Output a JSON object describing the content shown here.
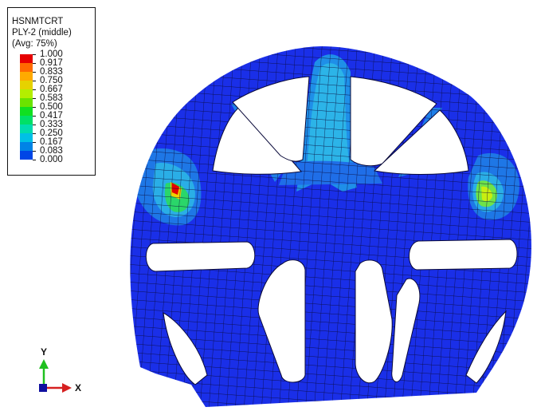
{
  "legend": {
    "variable": "HSNMTCRT",
    "ply": "PLY-2 (middle)",
    "averaging": "(Avg: 75%)",
    "levels": [
      "1.000",
      "0.917",
      "0.833",
      "0.750",
      "0.667",
      "0.583",
      "0.500",
      "0.417",
      "0.333",
      "0.250",
      "0.167",
      "0.083",
      "0.000"
    ],
    "colors": [
      "#e60000",
      "#ff6a00",
      "#ffaa00",
      "#e6d200",
      "#b4ee00",
      "#6ae300",
      "#10e020",
      "#00e066",
      "#00dcae",
      "#00c0e6",
      "#0084e6",
      "#0046e6",
      "#0000e6"
    ]
  },
  "triad": {
    "y_label": "Y",
    "x_label": "X",
    "y_color": "#1fc01f",
    "x_color": "#d62020"
  },
  "model": {
    "base_color": "#1a2fe8",
    "hotspots": [
      {
        "location": "left arm joint",
        "peak_level": 1.0,
        "color": "#e60000"
      },
      {
        "location": "right arm joint",
        "peak_level": 0.583,
        "color": "#6ae300"
      },
      {
        "location": "central spoke",
        "peak_level": 0.25,
        "color": "#00c0e6"
      }
    ]
  }
}
